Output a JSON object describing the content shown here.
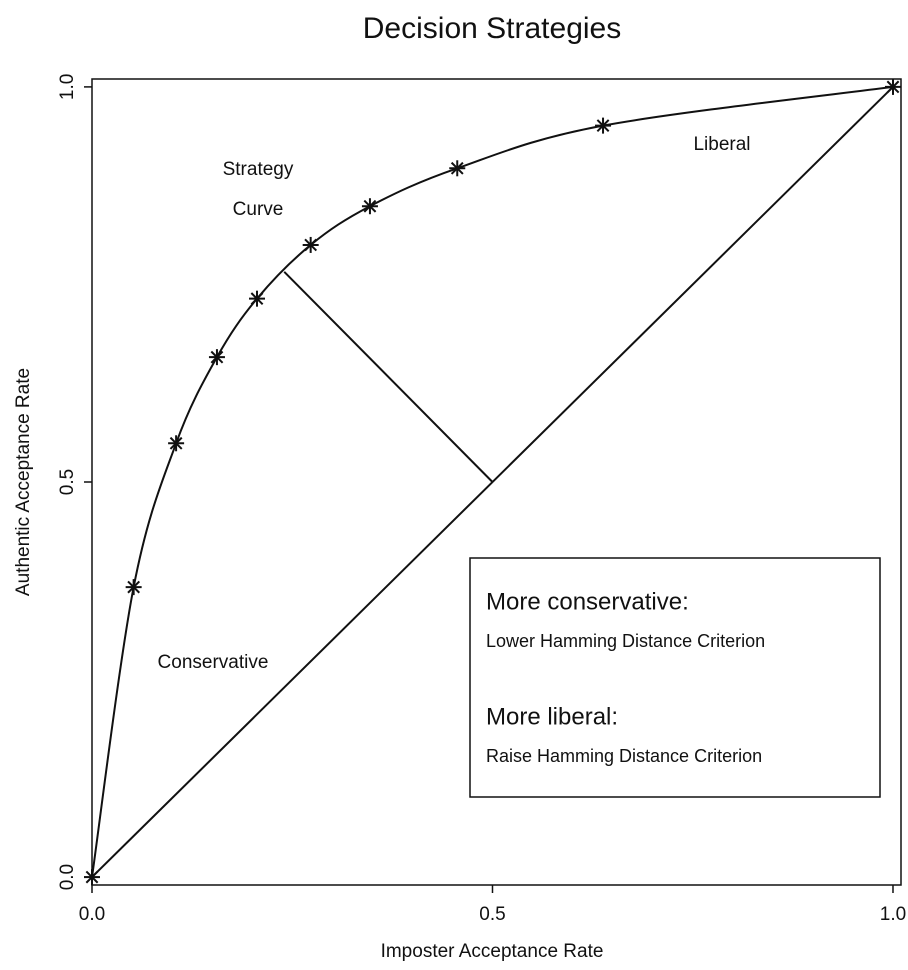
{
  "chart_data": {
    "type": "line",
    "title": "Decision Strategies",
    "x_label": "Imposter Acceptance Rate",
    "y_label": "Authentic Acceptance Rate",
    "xlim": [
      0,
      1.01
    ],
    "ylim": [
      -0.01,
      1.01
    ],
    "xticks": [
      {
        "value": 0,
        "label": "0.0"
      },
      0.5,
      {
        "value": 1,
        "label": "1.0"
      }
    ],
    "yticks": [
      {
        "value": 0,
        "label": "0.0"
      },
      0.5,
      {
        "value": 1,
        "label": "1.0"
      }
    ],
    "grid": false,
    "color": "#111111",
    "series": [
      {
        "x": [
          0,
          0.052,
          0.105,
          0.156,
          0.206,
          0.273,
          0.347,
          0.456,
          0.638,
          1.0
        ],
        "values": [
          0,
          0.367,
          0.549,
          0.658,
          0.732,
          0.8,
          0.849,
          0.897,
          0.951,
          1.0
        ],
        "smooth": true,
        "marker": "asterisk"
      },
      {
        "x": [
          0,
          1
        ],
        "values": [
          0,
          1
        ],
        "smooth": false,
        "marker": "none"
      },
      {
        "x": [
          0.24,
          0.5
        ],
        "values": [
          0.766,
          0.5
        ],
        "smooth": false,
        "marker": "none"
      }
    ],
    "annotations": [
      "Strategy",
      "Curve",
      "Liberal",
      "Conservative"
    ],
    "legend_box": [
      "More conservative:",
      "Lower Hamming Distance Criterion",
      "More liberal:",
      "Raise Hamming Distance Criterion"
    ]
  }
}
